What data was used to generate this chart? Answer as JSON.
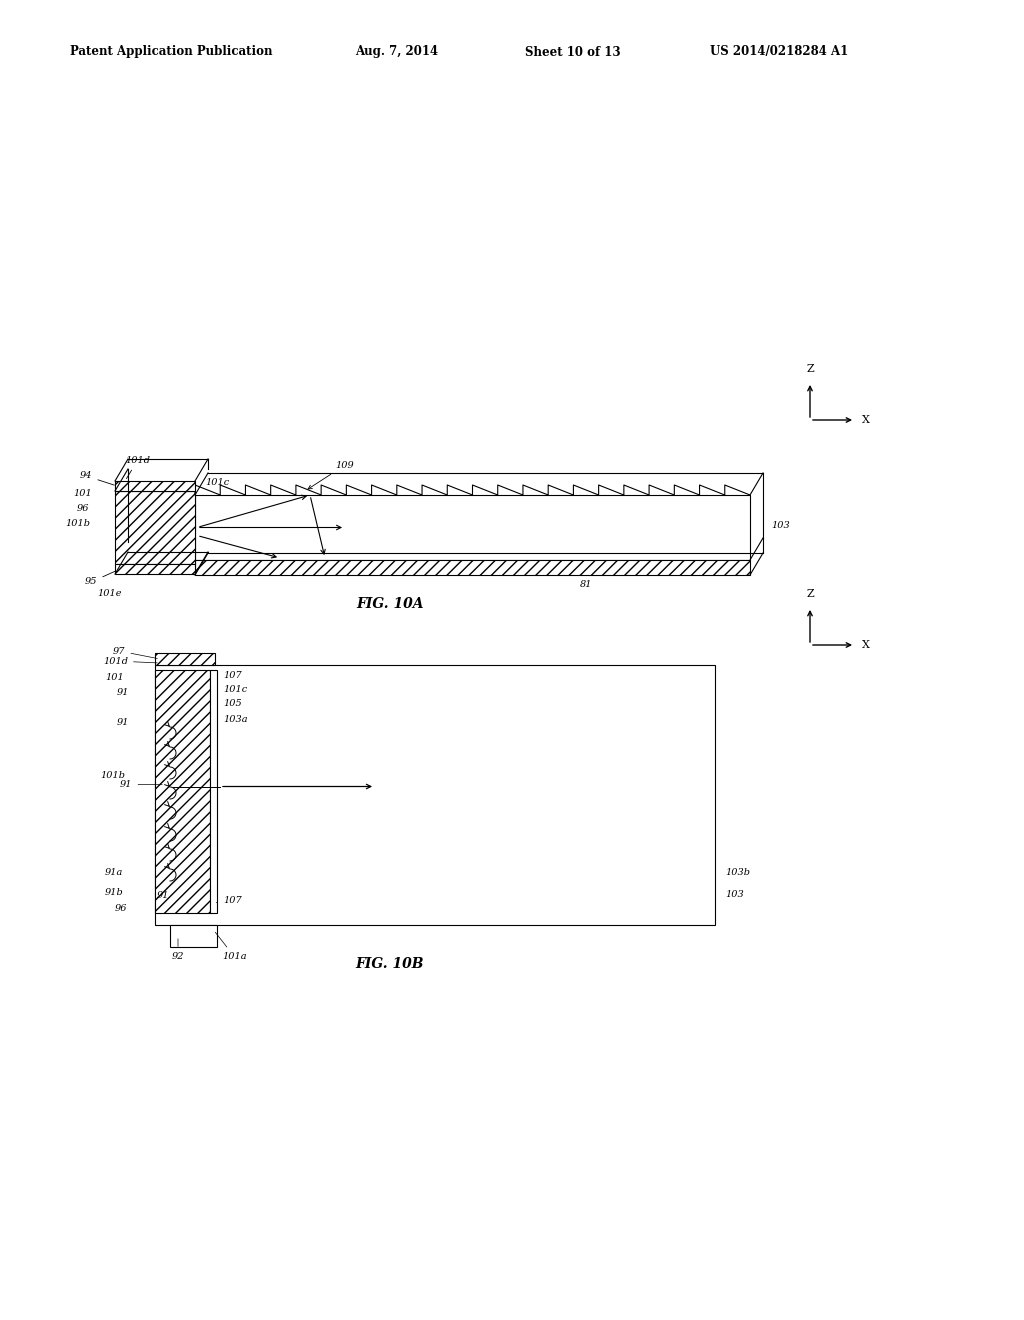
{
  "bg_color": "#ffffff",
  "header_text": "Patent Application Publication",
  "header_date": "Aug. 7, 2014",
  "header_sheet": "Sheet 10 of 13",
  "header_patent": "US 2014/0218284 A1",
  "line_color": "#000000",
  "fig_label_10a": "FIG. 10A",
  "fig_label_10b": "FIG. 10B"
}
